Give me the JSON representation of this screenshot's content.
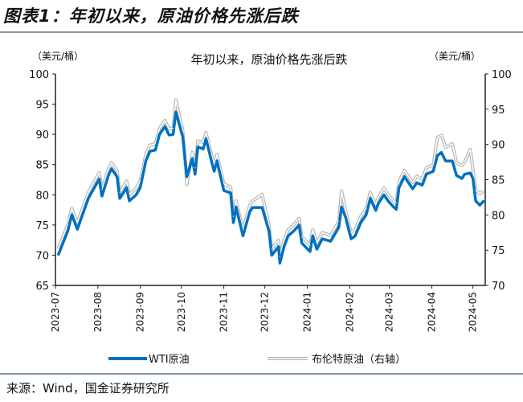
{
  "figure_title": "图表1：年初以来，原油价格先涨后跌",
  "source": "来源：Wind，国金证券研究所",
  "colors": {
    "wti": "#0070c0",
    "brent_outline": "#b8b8b8",
    "rule": "#7f96a8"
  },
  "chart_data": {
    "type": "line",
    "title": "年初以来，原油价格先涨后跌",
    "left_unit": "（美元/桶）",
    "right_unit": "（美元/桶）",
    "left_ylim": [
      65,
      100
    ],
    "right_ylim": [
      70,
      100
    ],
    "left_ticks": [
      "65",
      "70",
      "75",
      "80",
      "85",
      "90",
      "95",
      "100"
    ],
    "right_ticks": [
      "70",
      "75",
      "80",
      "85",
      "90",
      "95",
      "100"
    ],
    "x_ticks": [
      "2023-07",
      "2023-08",
      "2023-09",
      "2023-10",
      "2023-11",
      "2023-12",
      "2024-01",
      "2024-02",
      "2024-03",
      "2024-04",
      "2024-05"
    ],
    "xlim": [
      "2023-07-01",
      "2024-05-10"
    ],
    "grid": false,
    "legend_position": "bottom",
    "x": [
      "2023-07-03",
      "2023-07-10",
      "2023-07-13",
      "2023-07-17",
      "2023-07-25",
      "2023-08-02",
      "2023-08-04",
      "2023-08-09",
      "2023-08-11",
      "2023-08-15",
      "2023-08-17",
      "2023-08-22",
      "2023-08-24",
      "2023-08-29",
      "2023-09-01",
      "2023-09-05",
      "2023-09-08",
      "2023-09-12",
      "2023-09-15",
      "2023-09-19",
      "2023-09-22",
      "2023-09-25",
      "2023-09-27",
      "2023-10-02",
      "2023-10-05",
      "2023-10-09",
      "2023-10-11",
      "2023-10-13",
      "2023-10-17",
      "2023-10-19",
      "2023-10-23",
      "2023-10-25",
      "2023-10-27",
      "2023-11-01",
      "2023-11-06",
      "2023-11-08",
      "2023-11-10",
      "2023-11-15",
      "2023-11-20",
      "2023-11-22",
      "2023-11-29",
      "2023-12-04",
      "2023-12-06",
      "2023-12-11",
      "2023-12-12",
      "2023-12-15",
      "2023-12-18",
      "2023-12-22",
      "2023-12-26",
      "2023-12-28",
      "2024-01-03",
      "2024-01-05",
      "2024-01-08",
      "2024-01-12",
      "2024-01-18",
      "2024-01-24",
      "2024-01-26",
      "2024-01-29",
      "2024-02-02",
      "2024-02-05",
      "2024-02-09",
      "2024-02-13",
      "2024-02-16",
      "2024-02-20",
      "2024-02-22",
      "2024-02-26",
      "2024-02-29",
      "2024-03-04",
      "2024-03-06",
      "2024-03-08",
      "2024-03-12",
      "2024-03-18",
      "2024-03-21",
      "2024-03-25",
      "2024-03-28",
      "2024-04-02",
      "2024-04-05",
      "2024-04-08",
      "2024-04-11",
      "2024-04-16",
      "2024-04-19",
      "2024-04-23",
      "2024-04-25",
      "2024-04-29",
      "2024-05-01",
      "2024-05-03",
      "2024-05-06",
      "2024-05-09"
    ],
    "series": [
      {
        "name": "WTI原油",
        "axis": "left",
        "values": [
          70.0,
          74.0,
          76.7,
          74.3,
          79.4,
          82.6,
          79.8,
          83.4,
          84.3,
          83.0,
          79.4,
          81.2,
          79.0,
          80.0,
          81.2,
          85.6,
          87.2,
          87.4,
          90.0,
          91.3,
          89.9,
          90.0,
          93.7,
          89.6,
          83.0,
          86.0,
          83.4,
          87.9,
          87.6,
          89.3,
          85.6,
          83.9,
          85.6,
          80.7,
          80.3,
          75.4,
          78.0,
          73.2,
          77.2,
          77.9,
          77.9,
          74.0,
          70.0,
          71.4,
          68.7,
          71.4,
          73.2,
          74.0,
          75.0,
          72.0,
          70.6,
          73.2,
          71.0,
          72.7,
          72.3,
          74.6,
          78.0,
          76.3,
          72.7,
          73.2,
          75.4,
          76.7,
          79.4,
          77.4,
          78.6,
          80.0,
          79.0,
          78.0,
          77.6,
          81.2,
          83.0,
          81.0,
          82.0,
          81.6,
          83.4,
          83.9,
          86.5,
          87.0,
          85.6,
          85.6,
          83.2,
          82.7,
          83.4,
          83.6,
          82.7,
          79.0,
          78.3,
          79.0
        ]
      },
      {
        "name": "布伦特原油（右轴）",
        "axis": "right",
        "values": [
          75.2,
          78.6,
          80.9,
          78.9,
          83.2,
          86.0,
          83.6,
          86.7,
          87.4,
          86.3,
          83.2,
          84.8,
          82.9,
          83.8,
          84.8,
          88.6,
          89.9,
          90.1,
          92.3,
          93.4,
          92.2,
          92.3,
          96.3,
          92.0,
          84.3,
          88.9,
          86.7,
          90.5,
          90.3,
          91.7,
          88.6,
          87.1,
          88.6,
          84.4,
          84.0,
          79.8,
          82.0,
          77.9,
          81.4,
          82.0,
          82.9,
          78.6,
          75.2,
          76.4,
          74.1,
          76.4,
          77.9,
          78.6,
          79.5,
          76.9,
          75.7,
          77.9,
          76.0,
          77.5,
          77.1,
          79.1,
          83.4,
          80.6,
          77.5,
          77.9,
          79.8,
          80.9,
          83.2,
          81.5,
          82.5,
          83.8,
          82.9,
          82.0,
          81.7,
          84.8,
          86.3,
          84.6,
          85.5,
          85.1,
          86.7,
          87.1,
          91.0,
          91.3,
          89.6,
          90.1,
          87.4,
          87.0,
          87.5,
          89.3,
          86.5,
          83.5,
          83.0,
          83.4
        ]
      }
    ]
  }
}
